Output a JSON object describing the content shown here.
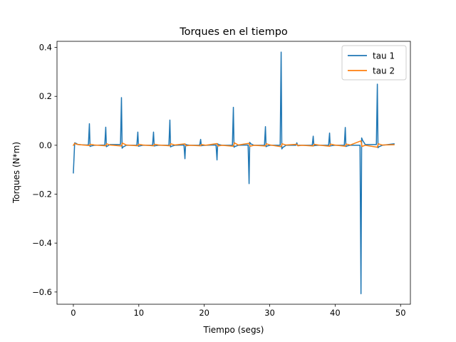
{
  "chart_data": {
    "type": "line",
    "title": "Torques en el tiempo",
    "xlabel": "Tiempo (segs)",
    "ylabel": "Torques (N*m)",
    "xlim": [
      -2.5,
      51.5
    ],
    "ylim": [
      -0.65,
      0.425
    ],
    "xticks": [
      0,
      10,
      20,
      30,
      40,
      50
    ],
    "yticks": [
      -0.6,
      -0.4,
      -0.2,
      0.0,
      0.2,
      0.4
    ],
    "xtick_labels": [
      "0",
      "10",
      "20",
      "30",
      "40",
      "50"
    ],
    "ytick_labels": [
      "−0.6",
      "−0.4",
      "−0.2",
      "0.0",
      "0.2",
      "0.4"
    ],
    "grid": false,
    "legend": "top-right",
    "series": [
      {
        "name": "tau 1",
        "color": "#1f77b4",
        "x": [
          0,
          0.2,
          0.4,
          0.7,
          1.2,
          2.0,
          2.3,
          2.45,
          2.55,
          2.7,
          3.2,
          4.8,
          4.95,
          5.05,
          5.2,
          5.6,
          7.2,
          7.35,
          7.45,
          7.6,
          8.1,
          9.7,
          9.85,
          9.95,
          10.1,
          10.6,
          12.1,
          12.25,
          12.35,
          12.5,
          13.0,
          14.6,
          14.75,
          14.85,
          15.0,
          15.5,
          16.9,
          17.05,
          17.15,
          17.3,
          17.8,
          19.3,
          19.45,
          19.55,
          19.7,
          20.2,
          21.8,
          21.95,
          22.05,
          22.2,
          22.7,
          24.3,
          24.45,
          24.55,
          24.7,
          25.2,
          26.7,
          26.85,
          26.95,
          27.1,
          27.6,
          29.2,
          29.35,
          29.45,
          29.6,
          30.1,
          31.6,
          31.75,
          31.85,
          32.0,
          32.5,
          34.0,
          34.15,
          34.25,
          34.4,
          34.9,
          36.5,
          36.65,
          36.75,
          36.9,
          37.4,
          39.0,
          39.15,
          39.25,
          39.4,
          39.9,
          41.4,
          41.55,
          41.65,
          41.8,
          42.3,
          43.8,
          43.95,
          44.05,
          44.2,
          44.6,
          46.3,
          46.45,
          46.55,
          46.7,
          47.2,
          49.0
        ],
        "y": [
          -0.113,
          0.01,
          0.008,
          0.003,
          0.002,
          0.001,
          0.002,
          0.088,
          -0.005,
          -0.003,
          0.0,
          0.001,
          0.074,
          -0.006,
          -0.003,
          0.003,
          0.003,
          0.195,
          -0.012,
          -0.007,
          0.0,
          0.0,
          0.054,
          -0.004,
          -0.003,
          0.0,
          0.0,
          0.054,
          -0.003,
          -0.002,
          0.0,
          0.0,
          0.103,
          -0.007,
          -0.004,
          0.0,
          0.001,
          -0.055,
          0.004,
          0.002,
          0.0,
          0.0,
          0.024,
          -0.002,
          -0.001,
          0.0,
          0.001,
          -0.06,
          0.006,
          0.003,
          0.0,
          0.0,
          0.155,
          -0.008,
          -0.005,
          0.0,
          0.001,
          -0.157,
          0.012,
          0.006,
          0.0,
          0.0,
          0.076,
          -0.006,
          -0.003,
          0.0,
          0.0,
          0.381,
          -0.015,
          -0.009,
          0.0,
          0.0,
          0.01,
          -0.001,
          0.0,
          0.0,
          0.0,
          0.037,
          -0.002,
          -0.001,
          0.0,
          0.0,
          0.05,
          -0.003,
          -0.002,
          0.0,
          0.0,
          0.073,
          -0.005,
          -0.003,
          0.0,
          0.0,
          -0.607,
          0.03,
          0.02,
          0.003,
          0.003,
          0.25,
          -0.01,
          -0.006,
          0.0,
          0.006
        ]
      },
      {
        "name": "tau 2",
        "color": "#ff7f0e",
        "x": [
          0,
          0.2,
          0.5,
          1.5,
          2.45,
          2.6,
          3.2,
          4.95,
          5.1,
          5.6,
          7.35,
          7.5,
          8.1,
          9.85,
          10.0,
          10.6,
          12.25,
          12.4,
          13.0,
          14.75,
          14.9,
          15.5,
          17.05,
          17.2,
          17.8,
          19.45,
          19.6,
          20.2,
          21.95,
          22.1,
          22.7,
          24.45,
          24.6,
          25.2,
          26.85,
          27.0,
          27.6,
          29.35,
          29.5,
          30.1,
          31.75,
          31.9,
          32.5,
          34.15,
          34.3,
          34.9,
          36.65,
          36.8,
          37.4,
          39.15,
          39.3,
          39.9,
          41.55,
          41.7,
          42.3,
          43.95,
          44.1,
          44.6,
          46.45,
          46.6,
          47.2,
          49.0
        ],
        "y": [
          0.0,
          0.008,
          0.004,
          0.001,
          -0.001,
          0.004,
          0.001,
          -0.002,
          0.006,
          0.001,
          -0.003,
          0.009,
          0.001,
          -0.002,
          0.004,
          0.001,
          -0.002,
          0.004,
          0.001,
          -0.002,
          0.006,
          0.001,
          0.006,
          -0.002,
          0.0,
          -0.002,
          0.003,
          0.0,
          0.007,
          -0.003,
          0.0,
          -0.004,
          0.01,
          0.001,
          0.008,
          -0.004,
          0.0,
          -0.003,
          0.006,
          0.001,
          -0.006,
          0.006,
          0.001,
          0.004,
          -0.002,
          0.0,
          -0.003,
          0.004,
          0.001,
          -0.004,
          0.005,
          0.001,
          -0.004,
          0.005,
          0.001,
          0.018,
          -0.005,
          0.0,
          -0.008,
          0.006,
          0.001,
          0.002
        ]
      }
    ]
  }
}
